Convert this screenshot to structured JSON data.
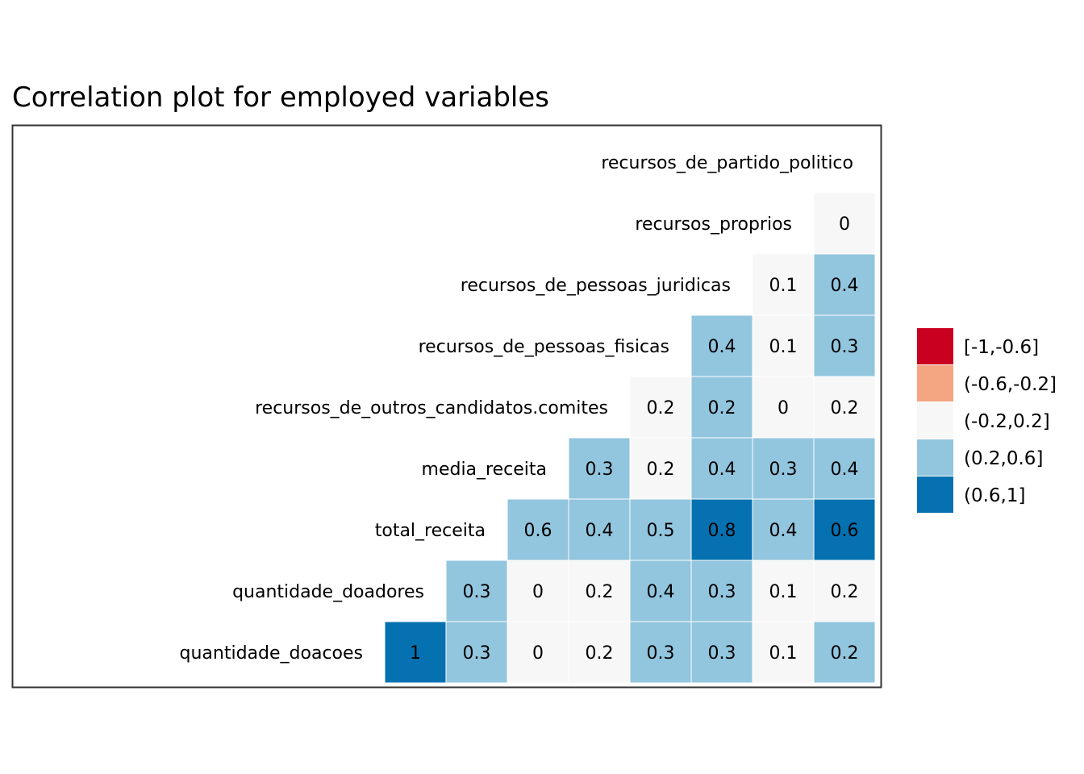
{
  "chart_data": {
    "type": "heatmap",
    "title": "Correlation plot for employed variables",
    "variables": [
      "quantidade_doacoes",
      "quantidade_doadores",
      "total_receita",
      "media_receita",
      "recursos_de_outros_candidatos.comites",
      "recursos_de_pessoas_fisicas",
      "recursos_de_pessoas_juridicas",
      "recursos_proprios",
      "recursos_de_partido_politico"
    ],
    "rows": [
      {
        "label": "recursos_de_partido_politico",
        "values": []
      },
      {
        "label": "recursos_proprios",
        "values": [
          0
        ]
      },
      {
        "label": "recursos_de_pessoas_juridicas",
        "values": [
          0.1,
          0.4
        ]
      },
      {
        "label": "recursos_de_pessoas_fisicas",
        "values": [
          0.4,
          0.1,
          0.3
        ]
      },
      {
        "label": "recursos_de_outros_candidatos.comites",
        "values": [
          0.2,
          0.2,
          0,
          0.2
        ]
      },
      {
        "label": "media_receita",
        "values": [
          0.3,
          0.2,
          0.4,
          0.3,
          0.4
        ]
      },
      {
        "label": "total_receita",
        "values": [
          0.6,
          0.4,
          0.5,
          0.8,
          0.4,
          0.6
        ]
      },
      {
        "label": "quantidade_doadores",
        "values": [
          0.3,
          0,
          0.2,
          0.4,
          0.3,
          0.1,
          0.2
        ]
      },
      {
        "label": "quantidade_doacoes",
        "values": [
          1,
          0.3,
          0,
          0.2,
          0.3,
          0.3,
          0.1,
          0.2
        ]
      }
    ],
    "cell_bins": [
      [
        "(-0.2,0.2]"
      ],
      [
        "(-0.2,0.2]",
        "(0.2,0.6]"
      ],
      [
        "(0.2,0.6]",
        "(-0.2,0.2]",
        "(0.2,0.6]"
      ],
      [
        "(-0.2,0.2]",
        "(0.2,0.6]",
        "(-0.2,0.2]",
        "(-0.2,0.2]"
      ],
      [
        "(0.2,0.6]",
        "(-0.2,0.2]",
        "(0.2,0.6]",
        "(0.2,0.6]",
        "(0.2,0.6]"
      ],
      [
        "(0.2,0.6]",
        "(0.2,0.6]",
        "(0.2,0.6]",
        "(0.6,1]",
        "(0.2,0.6]",
        "(0.6,1]"
      ],
      [
        "(0.2,0.6]",
        "(-0.2,0.2]",
        "(-0.2,0.2]",
        "(0.2,0.6]",
        "(0.2,0.6]",
        "(-0.2,0.2]",
        "(-0.2,0.2]"
      ],
      [
        "(0.6,1]",
        "(0.2,0.6]",
        "(-0.2,0.2]",
        "(-0.2,0.2]",
        "(0.2,0.6]",
        "(0.2,0.6]",
        "(-0.2,0.2]",
        "(0.2,0.6]"
      ]
    ],
    "legend": {
      "position": "right",
      "items": [
        {
          "label": "[-1,-0.6]",
          "color": "#ca0020"
        },
        {
          "label": "(-0.6,-0.2]",
          "color": "#f4a582"
        },
        {
          "label": "(-0.2,0.2]",
          "color": "#f7f7f7"
        },
        {
          "label": "(0.2,0.6]",
          "color": "#92c5de"
        },
        {
          "label": "(0.6,1]",
          "color": "#0571b0"
        }
      ]
    },
    "grid": false
  }
}
